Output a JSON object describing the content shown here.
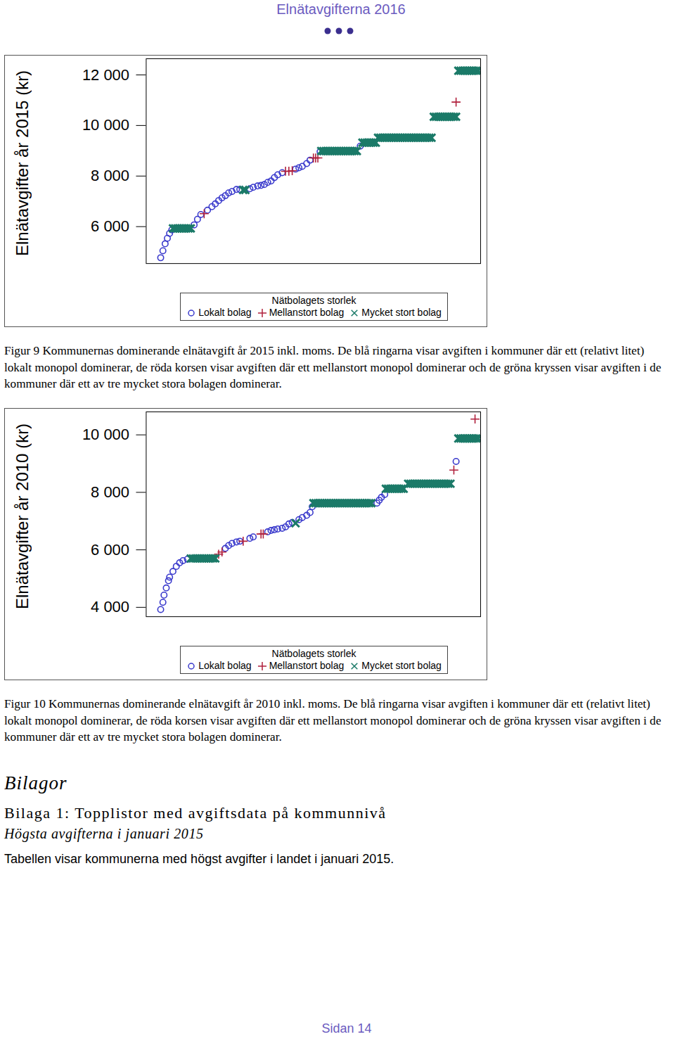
{
  "header": {
    "title": "Elnätavgifterna 2016"
  },
  "chart_data": [
    {
      "type": "scatter",
      "y_label": "Elnätavgifter år 2015 (kr)",
      "legend_title": "Nätbolagets storlek",
      "legend": "bottom",
      "tick_labels": "y",
      "xlim": [
        0,
        300
      ],
      "ylim": [
        4540,
        12640
      ],
      "yticks": [
        {
          "value": 6000,
          "label": "6 000"
        },
        {
          "value": 8000,
          "label": "8 000"
        },
        {
          "value": 10000,
          "label": "10 000"
        },
        {
          "value": 12000,
          "label": "12 000"
        }
      ],
      "caption": "Figur 9 Kommunernas dominerande elnätavgift år 2015 inkl. moms. De blå ringarna visar avgiften i kommuner där ett (relativt litet) lokalt monopol dominerar, de röda korsen visar avgiften där ett mellanstort monopol dominerar och de gröna kryssen visar avgiften i de kommuner där ett av tre mycket stora bolagen dominerar.",
      "series": [
        {
          "name": "Lokalt bolag",
          "color": "#3a3acc",
          "marker": "circle",
          "x": [
            13,
            15,
            17,
            19,
            21,
            23,
            43,
            46,
            49,
            55,
            59,
            62,
            65,
            68,
            71,
            74,
            77,
            81,
            84,
            93,
            96,
            100,
            103,
            106,
            109,
            112,
            115,
            118,
            122,
            134,
            137,
            140,
            144,
            147,
            156,
            192
          ],
          "values": [
            4770,
            5045,
            5320,
            5540,
            5735,
            5870,
            6070,
            6290,
            6480,
            6650,
            6790,
            6900,
            7030,
            7140,
            7225,
            7335,
            7390,
            7470,
            7470,
            7500,
            7555,
            7610,
            7630,
            7665,
            7750,
            7805,
            7940,
            8050,
            8135,
            8275,
            8330,
            8385,
            8495,
            8630,
            8965,
            9185
          ]
        },
        {
          "name": "Mellanstort bolag",
          "color": "#b0203c",
          "marker": "plus",
          "x": [
            52,
            125,
            128,
            131,
            150,
            152,
            154,
            278
          ],
          "values": [
            6510,
            8190,
            8190,
            8210,
            8715,
            8715,
            8715,
            10925
          ]
        },
        {
          "name": "Mycket stort bolag",
          "color": "#1b7a68",
          "marker": "times",
          "x": [
            24,
            26,
            28,
            30,
            32,
            34,
            36,
            38,
            40,
            87,
            89,
            157,
            159,
            161,
            163,
            165,
            167,
            169,
            171,
            173,
            175,
            177,
            179,
            181,
            183,
            185,
            187,
            189,
            194,
            196,
            198,
            200,
            202,
            204,
            206,
            208,
            210,
            212,
            214,
            216,
            218,
            220,
            222,
            224,
            226,
            228,
            230,
            232,
            234,
            236,
            238,
            240,
            242,
            244,
            246,
            248,
            250,
            252,
            254,
            256,
            258,
            260,
            262,
            264,
            266,
            268,
            270,
            272,
            274,
            276,
            278,
            280,
            282,
            284,
            286,
            288,
            290,
            292,
            294,
            296,
            298
          ],
          "values": [
            5930,
            5930,
            5930,
            5930,
            5930,
            5930,
            5930,
            5930,
            5930,
            7450,
            7450,
            8990,
            8990,
            8990,
            8990,
            8990,
            8990,
            8990,
            8990,
            8990,
            8990,
            8990,
            8990,
            8990,
            8990,
            8990,
            8990,
            8990,
            9320,
            9320,
            9320,
            9320,
            9320,
            9320,
            9320,
            9515,
            9515,
            9515,
            9515,
            9515,
            9515,
            9515,
            9515,
            9515,
            9515,
            9515,
            9515,
            9515,
            9515,
            9515,
            9515,
            9515,
            9515,
            9515,
            9515,
            9515,
            9515,
            9515,
            9515,
            9515,
            10345,
            10345,
            10345,
            10345,
            10345,
            10345,
            10345,
            10345,
            10345,
            10345,
            10345,
            12165,
            12165,
            12165,
            12165,
            12165,
            12165,
            12165,
            12165,
            12165,
            12165
          ]
        }
      ]
    },
    {
      "type": "scatter",
      "y_label": "Elnätavgifter år 2010 (kr)",
      "legend_title": "Nätbolagets storlek",
      "legend": "bottom",
      "tick_labels": "y",
      "xlim": [
        0,
        300
      ],
      "ylim": [
        3675,
        10800
      ],
      "yticks": [
        {
          "value": 4000,
          "label": "4 000"
        },
        {
          "value": 6000,
          "label": "6 000"
        },
        {
          "value": 8000,
          "label": "8 000"
        },
        {
          "value": 10000,
          "label": "10 000"
        }
      ],
      "caption": "Figur 10 Kommunernas dominerande elnätavgift år 2010 inkl. moms. De blå ringarna visar avgiften i kommuner där ett (relativt litet) lokalt monopol dominerar, de röda korsen visar avgiften där ett mellanstort monopol dominerar och de gröna kryssen visar avgiften i de kommuner där ett av tre mycket stora bolagen dominerar.",
      "series": [
        {
          "name": "Lokalt bolag",
          "color": "#3a3acc",
          "marker": "circle",
          "x": [
            13,
            15,
            16,
            18,
            20,
            21,
            24,
            27,
            30,
            33,
            37,
            71,
            74,
            77,
            81,
            84,
            93,
            96,
            109,
            112,
            115,
            118,
            122,
            125,
            128,
            131,
            137,
            140,
            144,
            147,
            149,
            207,
            209,
            211,
            214,
            278
          ],
          "values": [
            3925,
            4175,
            4425,
            4675,
            4925,
            5050,
            5250,
            5425,
            5550,
            5625,
            5675,
            6050,
            6150,
            6225,
            6275,
            6300,
            6400,
            6450,
            6625,
            6675,
            6700,
            6725,
            6750,
            6800,
            6900,
            6950,
            7050,
            7125,
            7200,
            7300,
            7500,
            7625,
            7725,
            7825,
            7925,
            9075
          ]
        },
        {
          "name": "Mellanstort bolag",
          "color": "#b0203c",
          "marker": "plus",
          "x": [
            65,
            68,
            87,
            103,
            105,
            276,
            295
          ],
          "values": [
            5850,
            5925,
            6300,
            6550,
            6550,
            8775,
            10550
          ]
        },
        {
          "name": "Mycket stort bolag",
          "color": "#1b7a68",
          "marker": "times",
          "x": [
            40,
            42,
            44,
            46,
            48,
            50,
            52,
            54,
            56,
            58,
            60,
            62,
            134,
            150,
            152,
            154,
            156,
            158,
            160,
            162,
            164,
            166,
            168,
            170,
            172,
            174,
            176,
            178,
            180,
            182,
            184,
            186,
            188,
            190,
            192,
            194,
            196,
            198,
            200,
            202,
            215,
            217,
            219,
            221,
            223,
            225,
            227,
            229,
            231,
            235,
            237,
            239,
            241,
            243,
            245,
            247,
            249,
            251,
            253,
            255,
            257,
            259,
            261,
            263,
            265,
            267,
            269,
            271,
            273,
            280,
            282,
            284,
            286,
            288,
            290,
            292,
            294,
            296,
            298
          ],
          "values": [
            5700,
            5700,
            5700,
            5700,
            5700,
            5700,
            5700,
            5700,
            5700,
            5700,
            5700,
            5700,
            6925,
            7625,
            7625,
            7625,
            7625,
            7625,
            7625,
            7625,
            7625,
            7625,
            7625,
            7625,
            7625,
            7625,
            7625,
            7625,
            7625,
            7625,
            7625,
            7625,
            7625,
            7625,
            7625,
            7625,
            7625,
            7625,
            7625,
            7625,
            8125,
            8125,
            8125,
            8125,
            8125,
            8125,
            8125,
            8125,
            8125,
            8300,
            8300,
            8300,
            8300,
            8300,
            8300,
            8300,
            8300,
            8300,
            8300,
            8300,
            8300,
            8300,
            8300,
            8300,
            8300,
            8300,
            8300,
            8300,
            8300,
            9875,
            9875,
            9875,
            9875,
            9875,
            9875,
            9875,
            9875,
            9875,
            9875
          ]
        }
      ]
    }
  ],
  "appendix": {
    "heading": "Bilagor",
    "subheading": "Bilaga 1: Topplistor med avgiftsdata på kommunnivå",
    "section": "Högsta avgifterna i januari 2015",
    "text": "Tabellen visar kommunerna med högst avgifter i landet i januari 2015."
  },
  "footer": {
    "page": "Sidan 14"
  }
}
